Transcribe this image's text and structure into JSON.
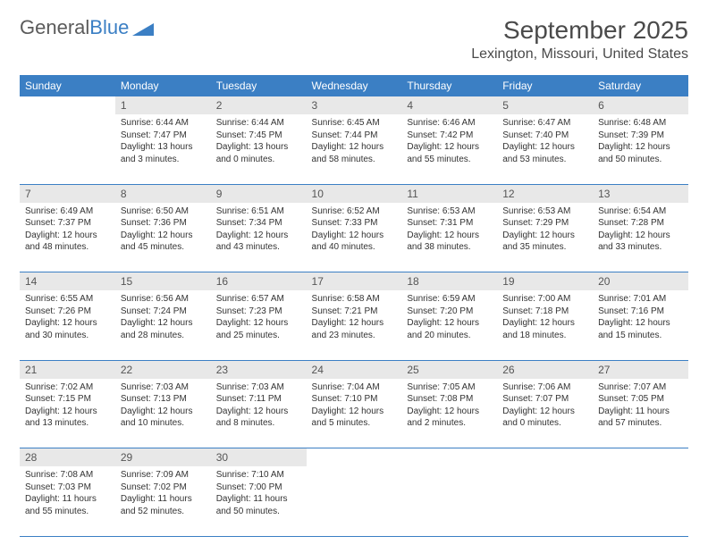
{
  "logo": {
    "text1": "General",
    "text2": "Blue"
  },
  "title": "September 2025",
  "location": "Lexington, Missouri, United States",
  "header_color": "#3b7fc4",
  "daynum_bg": "#e8e8e8",
  "weekdays": [
    "Sunday",
    "Monday",
    "Tuesday",
    "Wednesday",
    "Thursday",
    "Friday",
    "Saturday"
  ],
  "weeks": [
    [
      null,
      {
        "n": "1",
        "sr": "6:44 AM",
        "ss": "7:47 PM",
        "dl": "13 hours and 3 minutes."
      },
      {
        "n": "2",
        "sr": "6:44 AM",
        "ss": "7:45 PM",
        "dl": "13 hours and 0 minutes."
      },
      {
        "n": "3",
        "sr": "6:45 AM",
        "ss": "7:44 PM",
        "dl": "12 hours and 58 minutes."
      },
      {
        "n": "4",
        "sr": "6:46 AM",
        "ss": "7:42 PM",
        "dl": "12 hours and 55 minutes."
      },
      {
        "n": "5",
        "sr": "6:47 AM",
        "ss": "7:40 PM",
        "dl": "12 hours and 53 minutes."
      },
      {
        "n": "6",
        "sr": "6:48 AM",
        "ss": "7:39 PM",
        "dl": "12 hours and 50 minutes."
      }
    ],
    [
      {
        "n": "7",
        "sr": "6:49 AM",
        "ss": "7:37 PM",
        "dl": "12 hours and 48 minutes."
      },
      {
        "n": "8",
        "sr": "6:50 AM",
        "ss": "7:36 PM",
        "dl": "12 hours and 45 minutes."
      },
      {
        "n": "9",
        "sr": "6:51 AM",
        "ss": "7:34 PM",
        "dl": "12 hours and 43 minutes."
      },
      {
        "n": "10",
        "sr": "6:52 AM",
        "ss": "7:33 PM",
        "dl": "12 hours and 40 minutes."
      },
      {
        "n": "11",
        "sr": "6:53 AM",
        "ss": "7:31 PM",
        "dl": "12 hours and 38 minutes."
      },
      {
        "n": "12",
        "sr": "6:53 AM",
        "ss": "7:29 PM",
        "dl": "12 hours and 35 minutes."
      },
      {
        "n": "13",
        "sr": "6:54 AM",
        "ss": "7:28 PM",
        "dl": "12 hours and 33 minutes."
      }
    ],
    [
      {
        "n": "14",
        "sr": "6:55 AM",
        "ss": "7:26 PM",
        "dl": "12 hours and 30 minutes."
      },
      {
        "n": "15",
        "sr": "6:56 AM",
        "ss": "7:24 PM",
        "dl": "12 hours and 28 minutes."
      },
      {
        "n": "16",
        "sr": "6:57 AM",
        "ss": "7:23 PM",
        "dl": "12 hours and 25 minutes."
      },
      {
        "n": "17",
        "sr": "6:58 AM",
        "ss": "7:21 PM",
        "dl": "12 hours and 23 minutes."
      },
      {
        "n": "18",
        "sr": "6:59 AM",
        "ss": "7:20 PM",
        "dl": "12 hours and 20 minutes."
      },
      {
        "n": "19",
        "sr": "7:00 AM",
        "ss": "7:18 PM",
        "dl": "12 hours and 18 minutes."
      },
      {
        "n": "20",
        "sr": "7:01 AM",
        "ss": "7:16 PM",
        "dl": "12 hours and 15 minutes."
      }
    ],
    [
      {
        "n": "21",
        "sr": "7:02 AM",
        "ss": "7:15 PM",
        "dl": "12 hours and 13 minutes."
      },
      {
        "n": "22",
        "sr": "7:03 AM",
        "ss": "7:13 PM",
        "dl": "12 hours and 10 minutes."
      },
      {
        "n": "23",
        "sr": "7:03 AM",
        "ss": "7:11 PM",
        "dl": "12 hours and 8 minutes."
      },
      {
        "n": "24",
        "sr": "7:04 AM",
        "ss": "7:10 PM",
        "dl": "12 hours and 5 minutes."
      },
      {
        "n": "25",
        "sr": "7:05 AM",
        "ss": "7:08 PM",
        "dl": "12 hours and 2 minutes."
      },
      {
        "n": "26",
        "sr": "7:06 AM",
        "ss": "7:07 PM",
        "dl": "12 hours and 0 minutes."
      },
      {
        "n": "27",
        "sr": "7:07 AM",
        "ss": "7:05 PM",
        "dl": "11 hours and 57 minutes."
      }
    ],
    [
      {
        "n": "28",
        "sr": "7:08 AM",
        "ss": "7:03 PM",
        "dl": "11 hours and 55 minutes."
      },
      {
        "n": "29",
        "sr": "7:09 AM",
        "ss": "7:02 PM",
        "dl": "11 hours and 52 minutes."
      },
      {
        "n": "30",
        "sr": "7:10 AM",
        "ss": "7:00 PM",
        "dl": "11 hours and 50 minutes."
      },
      null,
      null,
      null,
      null
    ]
  ],
  "labels": {
    "sunrise": "Sunrise:",
    "sunset": "Sunset:",
    "daylight": "Daylight:"
  }
}
